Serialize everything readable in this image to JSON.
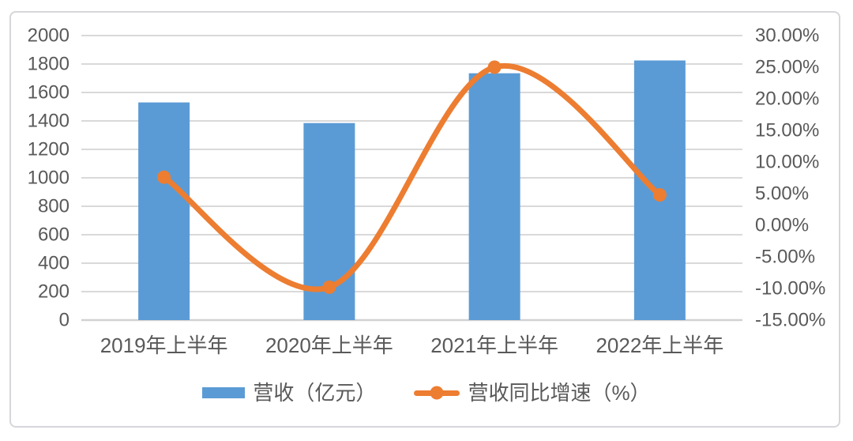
{
  "chart_data": {
    "type": "bar",
    "subtype": "combo-bar-line-dual-axis",
    "title": "",
    "categories": [
      "2019年上半年",
      "2020年上半年",
      "2021年上半年",
      "2022年上半年"
    ],
    "series": [
      {
        "name": "营收（亿元）",
        "type": "bar",
        "axis": "left",
        "values": [
          1530,
          1385,
          1735,
          1825
        ]
      },
      {
        "name": "营收同比增速（%）",
        "type": "line",
        "axis": "right",
        "smooth": true,
        "marker": "circle",
        "values": [
          7.6,
          -9.8,
          25.0,
          4.8
        ]
      }
    ],
    "left_axis": {
      "min": 0,
      "max": 2000,
      "step": 200,
      "tick_labels_top_to_bottom": [
        "2000",
        "1800",
        "1600",
        "1400",
        "1200",
        "1000",
        "800",
        "600",
        "400",
        "200",
        "0"
      ]
    },
    "right_axis": {
      "min": -15,
      "max": 30,
      "step": 5,
      "tick_labels_top_to_bottom": [
        "30.00%",
        "25.00%",
        "20.00%",
        "15.00%",
        "10.00%",
        "5.00%",
        "0.00%",
        "-5.00%",
        "-10.00%",
        "-15.00%"
      ]
    },
    "grid": true,
    "legend_position": "bottom"
  },
  "legend": {
    "bar_label": "营收（亿元）",
    "line_label": "营收同比增速（%）"
  },
  "colors": {
    "bar": "#5B9BD5",
    "line": "#ED7D31",
    "grid": "#D9D9D9",
    "axis_line": "#D2D2D2",
    "axis_text": "#595959",
    "card_border": "#D6D6DB",
    "background": "#FFFFFF"
  }
}
